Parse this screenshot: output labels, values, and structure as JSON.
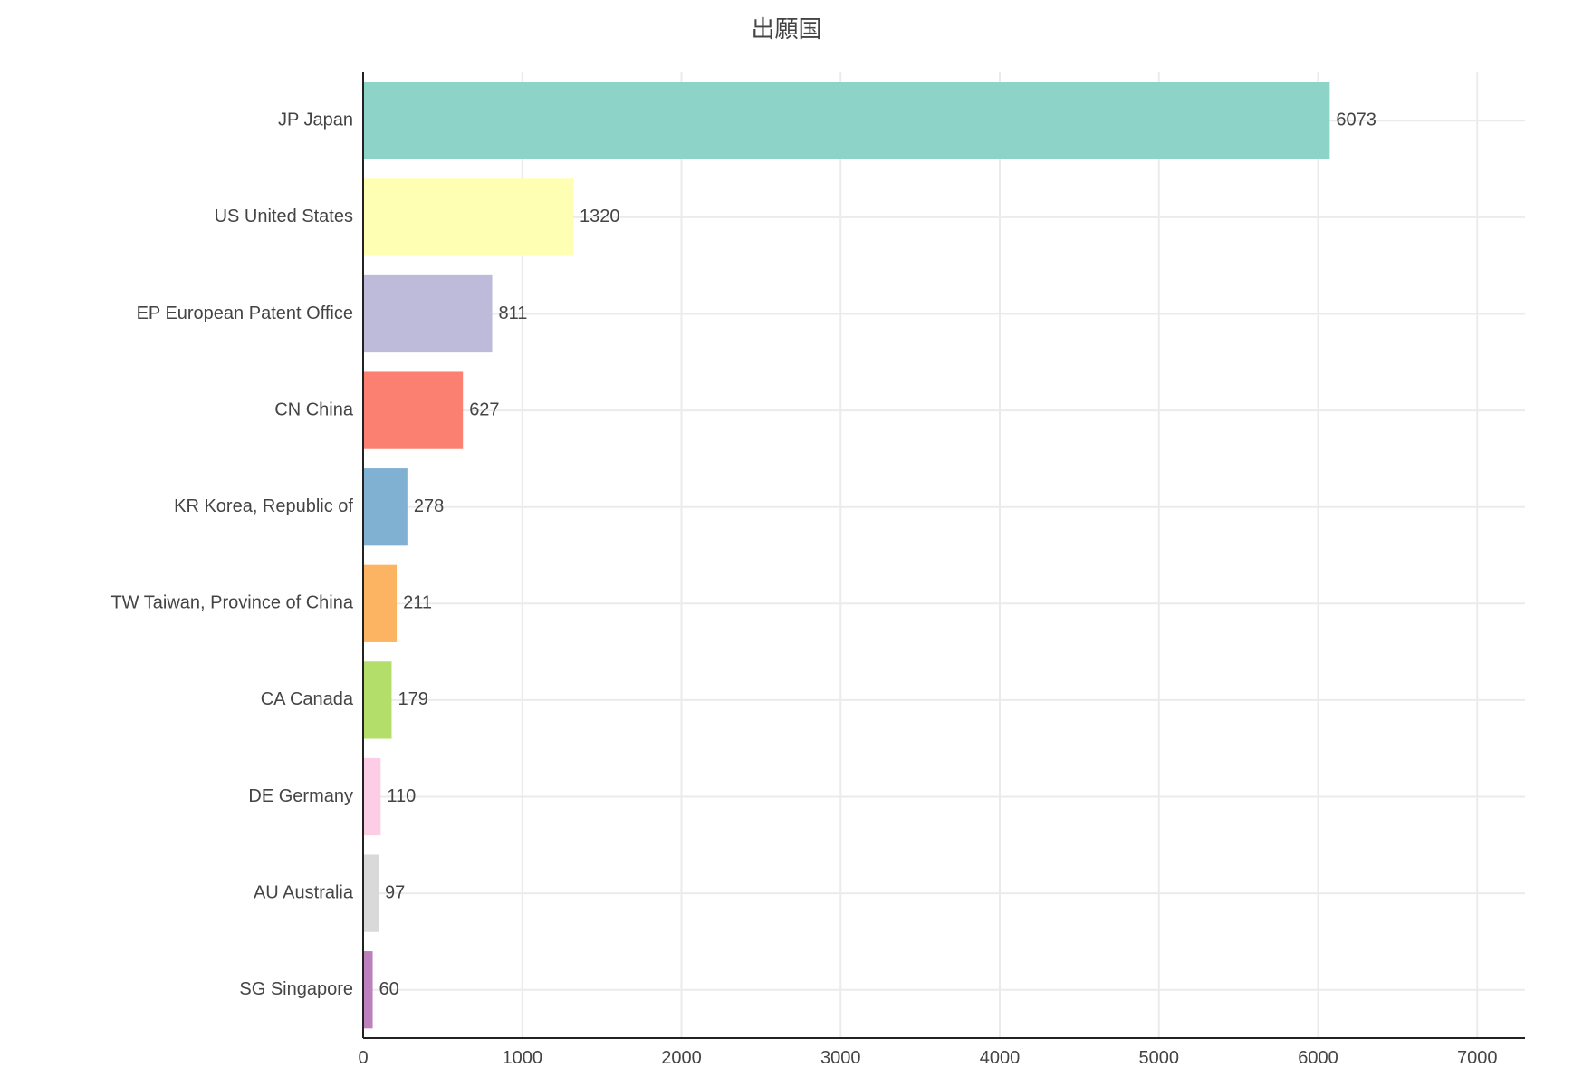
{
  "chart_data": {
    "type": "bar",
    "orientation": "horizontal",
    "title": "出願国",
    "xlabel": "",
    "ylabel": "",
    "categories": [
      "JP Japan",
      "US United States",
      "EP European Patent Office",
      "CN China",
      "KR Korea, Republic of",
      "TW Taiwan, Province of China",
      "CA Canada",
      "DE Germany",
      "AU Australia",
      "SG Singapore"
    ],
    "values": [
      6073,
      1320,
      811,
      627,
      278,
      211,
      179,
      110,
      97,
      60
    ],
    "colors": [
      "#8dd3c7",
      "#ffffb3",
      "#bebada",
      "#fb8072",
      "#80b1d3",
      "#fdb462",
      "#b3de69",
      "#fccde5",
      "#d9d9d9",
      "#bc80bd"
    ],
    "xlim": [
      0,
      7300
    ],
    "xticks": [
      0,
      1000,
      2000,
      3000,
      4000,
      5000,
      6000,
      7000
    ],
    "grid": true,
    "data_labels": true
  }
}
